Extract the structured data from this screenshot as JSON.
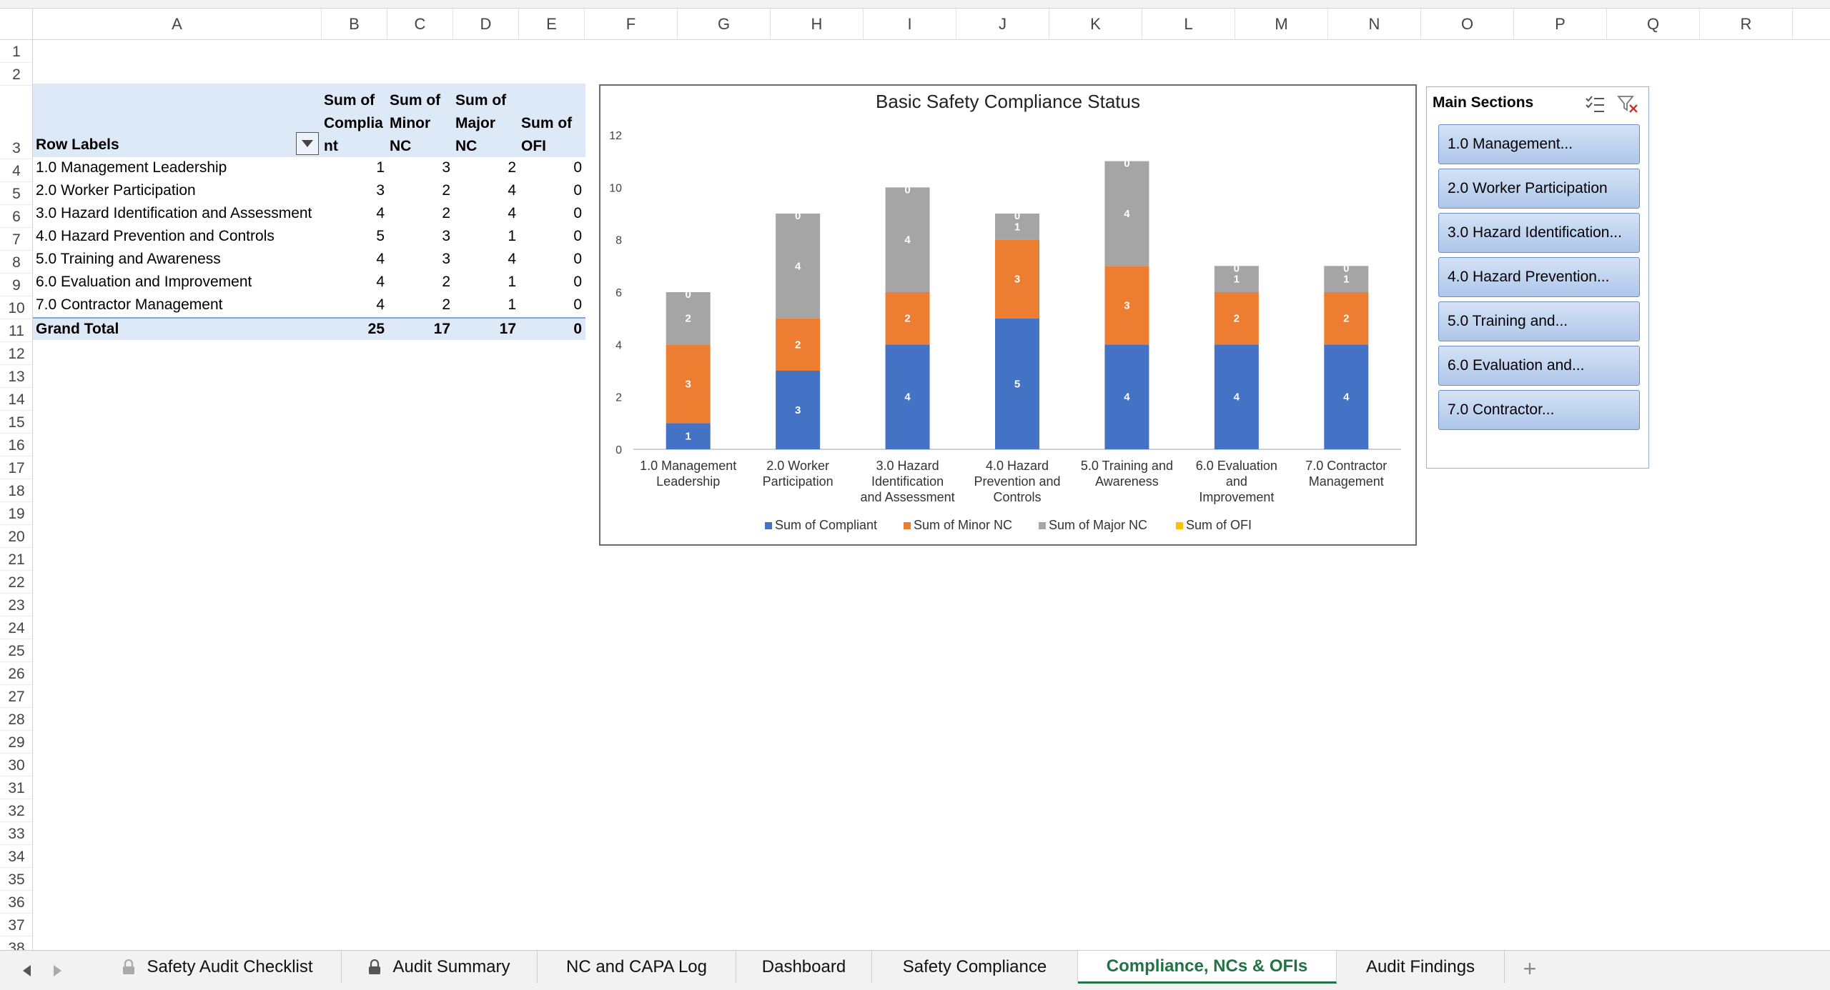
{
  "columns": [
    "A",
    "B",
    "C",
    "D",
    "E",
    "F",
    "G",
    "H",
    "I",
    "J",
    "K",
    "L",
    "M",
    "N",
    "O",
    "P",
    "Q",
    "R"
  ],
  "rows": [
    "1",
    "2",
    "3",
    "4",
    "5",
    "6",
    "7",
    "8",
    "9",
    "10",
    "11",
    "12",
    "13",
    "14",
    "15",
    "16",
    "17",
    "18",
    "19",
    "20",
    "21",
    "22",
    "23",
    "24",
    "25",
    "26",
    "27",
    "28",
    "29",
    "30",
    "31",
    "32",
    "33",
    "34",
    "35",
    "36",
    "37",
    "38"
  ],
  "pivot": {
    "row_labels": "Row Labels",
    "headers": [
      {
        "l1": "Sum of",
        "l2": "Complia",
        "l3": "nt"
      },
      {
        "l1": "Sum of",
        "l2": "Minor",
        "l3": "NC"
      },
      {
        "l1": "Sum of",
        "l2": "Major",
        "l3": "NC"
      },
      {
        "l1": "",
        "l2": "Sum of",
        "l3": "OFI"
      }
    ],
    "rows": [
      {
        "label": "1.0 Management Leadership",
        "v": [
          "1",
          "3",
          "2",
          "0"
        ]
      },
      {
        "label": "2.0 Worker Participation",
        "v": [
          "3",
          "2",
          "4",
          "0"
        ]
      },
      {
        "label": "3.0 Hazard Identification and Assessment",
        "v": [
          "4",
          "2",
          "4",
          "0"
        ]
      },
      {
        "label": "4.0 Hazard Prevention and Controls",
        "v": [
          "5",
          "3",
          "1",
          "0"
        ]
      },
      {
        "label": "5.0 Training and Awareness",
        "v": [
          "4",
          "3",
          "4",
          "0"
        ]
      },
      {
        "label": "6.0 Evaluation and Improvement",
        "v": [
          "4",
          "2",
          "1",
          "0"
        ]
      },
      {
        "label": "7.0 Contractor Management",
        "v": [
          "4",
          "2",
          "1",
          "0"
        ]
      }
    ],
    "grand_total": {
      "label": "Grand Total",
      "v": [
        "25",
        "17",
        "17",
        "0"
      ]
    }
  },
  "chart_data": {
    "type": "bar",
    "stacked": true,
    "title": "Basic Safety Compliance Status",
    "categories": [
      [
        "1.0 Management",
        "Leadership"
      ],
      [
        "2.0 Worker",
        "Participation"
      ],
      [
        "3.0 Hazard",
        "Identification",
        "and Assessment"
      ],
      [
        "4.0 Hazard",
        "Prevention and",
        "Controls"
      ],
      [
        "5.0 Training and",
        "Awareness"
      ],
      [
        "6.0 Evaluation",
        "and",
        "Improvement"
      ],
      [
        "7.0 Contractor",
        "Management"
      ]
    ],
    "series": [
      {
        "name": "Sum of Compliant",
        "color": "#4472c4",
        "values": [
          1,
          3,
          4,
          5,
          4,
          4,
          4
        ]
      },
      {
        "name": "Sum of Minor NC",
        "color": "#ed7d31",
        "values": [
          3,
          2,
          2,
          3,
          3,
          2,
          2
        ]
      },
      {
        "name": "Sum of Major NC",
        "color": "#a5a5a5",
        "values": [
          2,
          4,
          4,
          1,
          4,
          1,
          1
        ]
      },
      {
        "name": "Sum of OFI",
        "color": "#ffc000",
        "values": [
          0,
          0,
          0,
          0,
          0,
          0,
          0
        ]
      }
    ],
    "ylim": [
      0,
      12
    ],
    "yticks": [
      0,
      2,
      4,
      6,
      8,
      10,
      12
    ],
    "legend": "bottom",
    "data_labels": true
  },
  "slicer": {
    "title": "Main Sections",
    "items": [
      "1.0 Management...",
      "2.0 Worker Participation",
      "3.0 Hazard Identification...",
      "4.0 Hazard Prevention...",
      "5.0 Training and...",
      "6.0 Evaluation and...",
      "7.0 Contractor..."
    ]
  },
  "tabs": [
    {
      "label": "Safety Audit Checklist",
      "locked": true
    },
    {
      "label": "Audit Summary",
      "locked": true
    },
    {
      "label": "NC and CAPA Log",
      "locked": false
    },
    {
      "label": "Dashboard",
      "locked": false
    },
    {
      "label": "Safety Compliance",
      "locked": false
    },
    {
      "label": "Compliance, NCs & OFIs",
      "locked": false,
      "active": true
    },
    {
      "label": "Audit Findings",
      "locked": false
    }
  ],
  "add_sheet": "+"
}
